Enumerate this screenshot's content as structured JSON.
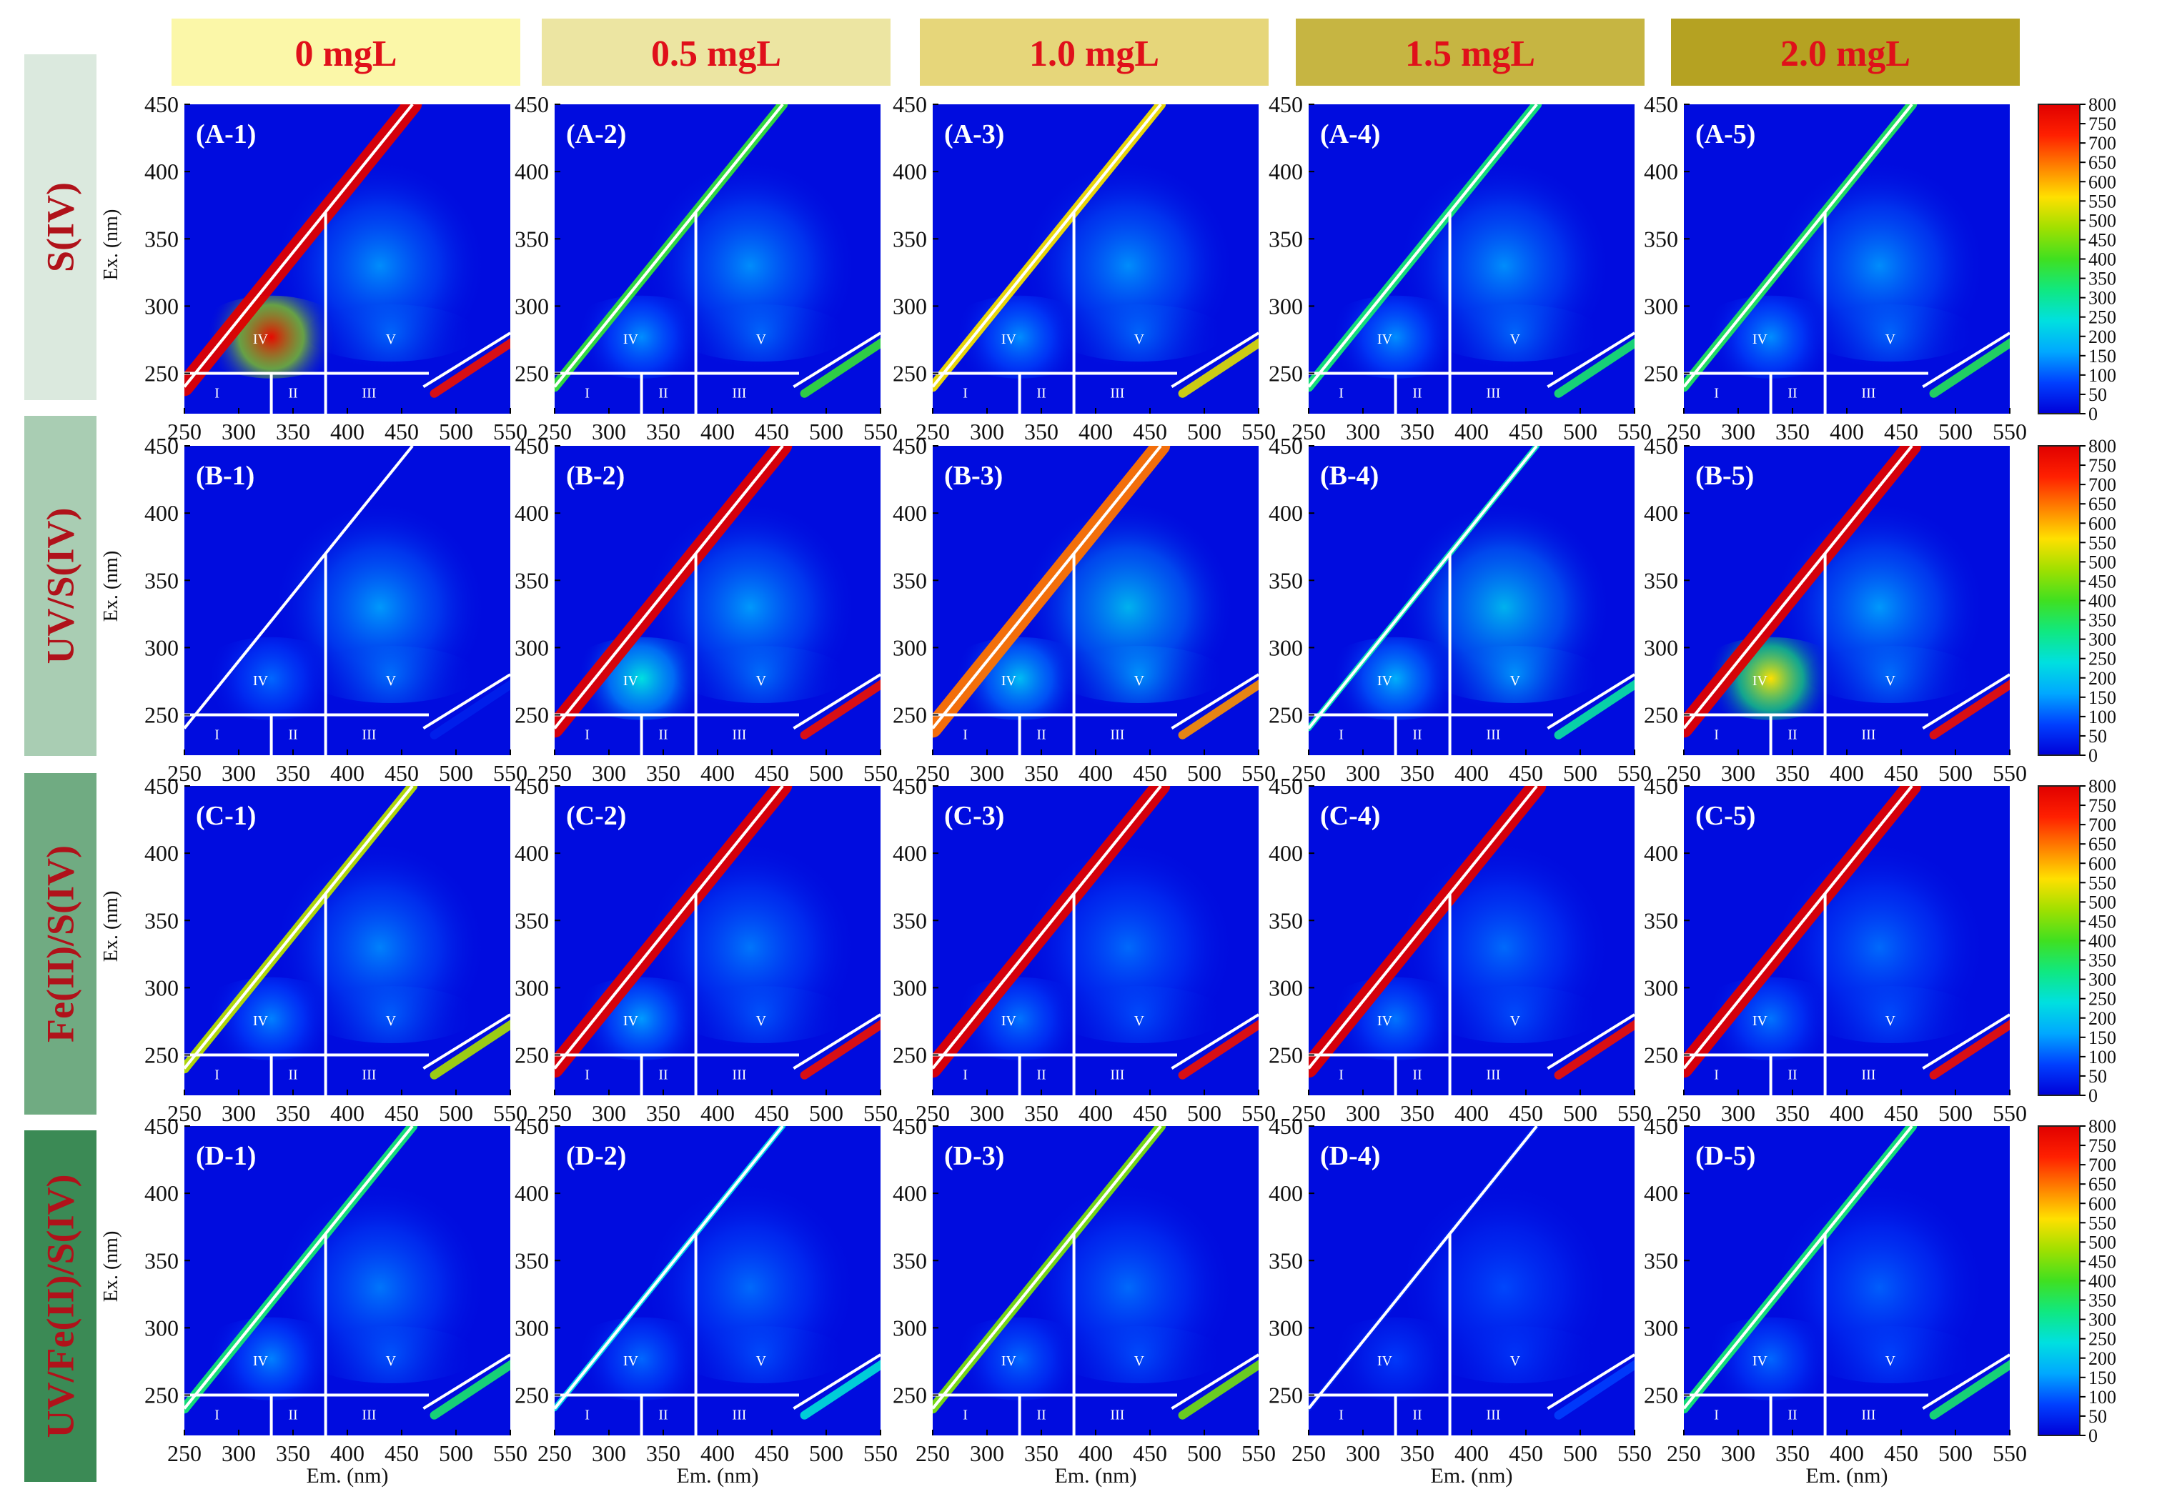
{
  "chart_data": {
    "type": "heatmap",
    "description_kind": "excitation-emission matrix (EEM) fluorescence spectra grid",
    "columns": [
      {
        "label": "0 mgL",
        "header_color": "#fbf7a8"
      },
      {
        "label": "0.5 mgL",
        "header_color": "#ece5a2"
      },
      {
        "label": "1.0 mgL",
        "header_color": "#e6d67a"
      },
      {
        "label": "1.5 mgL",
        "header_color": "#c6b542"
      },
      {
        "label": "2.0 mgL",
        "header_color": "#b5a222"
      }
    ],
    "rows": [
      {
        "label": "S(IV)",
        "id": "A",
        "label_bg": "#dbe9de"
      },
      {
        "label": "UV/S(IV)",
        "id": "B",
        "label_bg": "#a9cdb3"
      },
      {
        "label": "Fe(II)/S(IV)",
        "id": "C",
        "label_bg": "#70ab82"
      },
      {
        "label": "UV/Fe(II)/S(IV)",
        "id": "D",
        "label_bg": "#3b8a55"
      }
    ],
    "panel_labels": [
      [
        "(A-1)",
        "(A-2)",
        "(A-3)",
        "(A-4)",
        "(A-5)"
      ],
      [
        "(B-1)",
        "(B-2)",
        "(B-3)",
        "(B-4)",
        "(B-5)"
      ],
      [
        "(C-1)",
        "(C-2)",
        "(C-3)",
        "(C-4)",
        "(C-5)"
      ],
      [
        "(D-1)",
        "(D-2)",
        "(D-3)",
        "(D-4)",
        "(D-5)"
      ]
    ],
    "xlabel": "Em. (nm)",
    "ylabel": "Ex. (nm)",
    "xlim": [
      250,
      550
    ],
    "ylim": [
      220,
      450
    ],
    "xticks": [
      250,
      300,
      350,
      400,
      450,
      500,
      550
    ],
    "xtick_labels": [
      "250",
      "300",
      "350",
      "400",
      "450",
      "500",
      "550"
    ],
    "yticks": [
      250,
      300,
      350,
      400,
      450
    ],
    "ytick_labels": [
      "250",
      "300",
      "350",
      "400",
      "450"
    ],
    "region_labels": [
      "I",
      "II",
      "III",
      "IV",
      "V"
    ],
    "region_boundaries": {
      "ex_split": 250,
      "em_splits": [
        330,
        380
      ],
      "scatter_line_1": [
        [
          250,
          240
        ],
        [
          460,
          450
        ]
      ],
      "scatter_line_2": [
        [
          470,
          240
        ],
        [
          550,
          280
        ]
      ]
    },
    "colorbar": {
      "ticks": [
        0,
        50,
        100,
        150,
        200,
        250,
        300,
        350,
        400,
        450,
        500,
        550,
        600,
        650,
        700,
        750,
        800
      ],
      "tick_labels": [
        "0",
        "50",
        "100",
        "150",
        "200",
        "250",
        "300",
        "350",
        "400",
        "450",
        "500",
        "550",
        "600",
        "650",
        "700",
        "750",
        "800"
      ],
      "range": [
        0,
        800
      ],
      "colormap": [
        "#0000d8",
        "#0040ff",
        "#00a8ff",
        "#00e0e0",
        "#10e880",
        "#40e020",
        "#a0e000",
        "#ffe000",
        "#ff8000",
        "#ff2000",
        "#e00000"
      ]
    },
    "peak_intensity": {
      "A": [
        {
          "scatter": 800,
          "peak_IV": 780,
          "peak_V": 150
        },
        {
          "scatter": 380,
          "peak_IV": 140,
          "peak_V": 150
        },
        {
          "scatter": 550,
          "peak_IV": 140,
          "peak_V": 150
        },
        {
          "scatter": 330,
          "peak_IV": 140,
          "peak_V": 150
        },
        {
          "scatter": 350,
          "peak_IV": 140,
          "peak_V": 150
        }
      ],
      "B": [
        {
          "scatter": 0,
          "peak_IV": 110,
          "peak_V": 160
        },
        {
          "scatter": 800,
          "peak_IV": 240,
          "peak_V": 160
        },
        {
          "scatter": 650,
          "peak_IV": 190,
          "peak_V": 200
        },
        {
          "scatter": 280,
          "peak_IV": 170,
          "peak_V": 200
        },
        {
          "scatter": 800,
          "peak_IV": 560,
          "peak_V": 160
        }
      ],
      "C": [
        {
          "scatter": 500,
          "peak_IV": 130,
          "peak_V": 140
        },
        {
          "scatter": 800,
          "peak_IV": 150,
          "peak_V": 130
        },
        {
          "scatter": 800,
          "peak_IV": 120,
          "peak_V": 120
        },
        {
          "scatter": 800,
          "peak_IV": 120,
          "peak_V": 120
        },
        {
          "scatter": 800,
          "peak_IV": 120,
          "peak_V": 120
        }
      ],
      "D": [
        {
          "scatter": 330,
          "peak_IV": 130,
          "peak_V": 130
        },
        {
          "scatter": 230,
          "peak_IV": 110,
          "peak_V": 120
        },
        {
          "scatter": 450,
          "peak_IV": 110,
          "peak_V": 120
        },
        {
          "scatter": 40,
          "peak_IV": 70,
          "peak_V": 90
        },
        {
          "scatter": 330,
          "peak_IV": 110,
          "peak_V": 110
        }
      ]
    }
  }
}
